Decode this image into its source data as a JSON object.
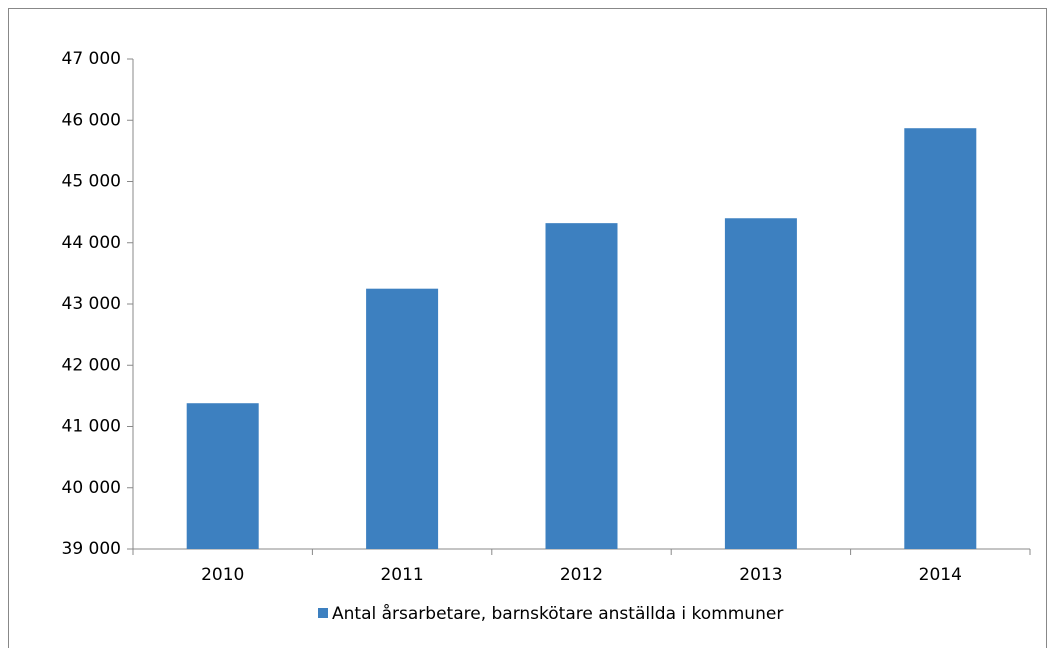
{
  "chart_data": {
    "type": "bar",
    "categories": [
      "2010",
      "2011",
      "2012",
      "2013",
      "2014"
    ],
    "series": [
      {
        "name": "Antal årsarbetare, barnskötare anställda i kommuner",
        "color": "#3d80c0",
        "values": [
          41380,
          43250,
          44320,
          44400,
          45870
        ]
      }
    ],
    "ylim": [
      39000,
      47000
    ],
    "yticks": [
      {
        "value": 39000,
        "label": "39 000"
      },
      {
        "value": 40000,
        "label": "40 000"
      },
      {
        "value": 41000,
        "label": "41 000"
      },
      {
        "value": 42000,
        "label": "42 000"
      },
      {
        "value": 43000,
        "label": "43 000"
      },
      {
        "value": 44000,
        "label": "44 000"
      },
      {
        "value": 45000,
        "label": "45 000"
      },
      {
        "value": 46000,
        "label": "46 000"
      },
      {
        "value": 47000,
        "label": "47 000"
      }
    ],
    "grid": false,
    "legend": "bottom"
  }
}
